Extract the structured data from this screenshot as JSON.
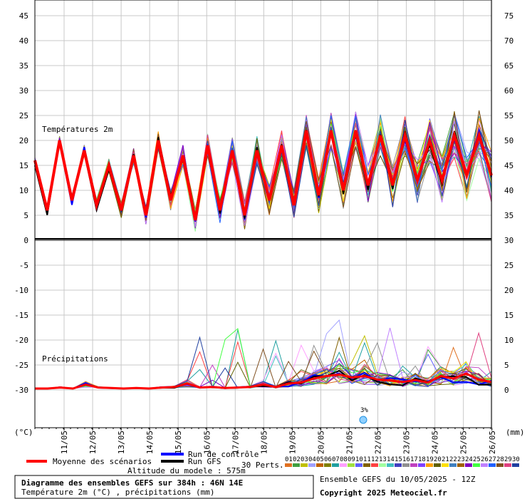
{
  "chart_data": {
    "type": "line",
    "temp_panel": {
      "label": "Températures 2m",
      "left_ticks": [
        "45",
        "40",
        "35",
        "30",
        "25",
        "20",
        "15",
        "10",
        "5"
      ],
      "right_ticks": [
        "75",
        "70",
        "65",
        "60",
        "55",
        "50",
        "45",
        "40",
        "35"
      ]
    },
    "precip_panel": {
      "label": "Précipitations",
      "left_ticks": [
        "0",
        "-5",
        "-10",
        "-15",
        "-20",
        "-25",
        "-30"
      ],
      "right_ticks": [
        "30",
        "25",
        "20",
        "15",
        "10",
        "5",
        "0"
      ]
    },
    "x_ticks": [
      "11/05",
      "12/05",
      "13/05",
      "14/05",
      "15/05",
      "16/05",
      "17/05",
      "18/05",
      "19/05",
      "20/05",
      "21/05",
      "22/05",
      "23/05",
      "24/05",
      "25/05",
      "26/05"
    ],
    "left_unit": "(°C)",
    "right_unit": "(mm)",
    "snow_marker": {
      "label": "3%",
      "date": "22/05"
    },
    "mean_temp": [
      16,
      6,
      20,
      8,
      18,
      7,
      15,
      6,
      17,
      5,
      20,
      8,
      17,
      4,
      19,
      6,
      18,
      5,
      18,
      8,
      19,
      7,
      22,
      9,
      22,
      10,
      22,
      11,
      21,
      11,
      21,
      12,
      20,
      12,
      21,
      13,
      21,
      13
    ],
    "mean_precip": [
      0,
      0,
      0.2,
      0,
      0.8,
      0.2,
      0.1,
      0,
      0.1,
      0,
      0.2,
      0.3,
      1,
      0.2,
      0.3,
      0.1,
      0.2,
      0.3,
      0.8,
      0.3,
      1,
      1.2,
      2,
      2.5,
      2.8,
      2.2,
      2.5,
      1.8,
      1.6,
      1.3,
      1.7,
      1.2,
      2.5,
      2,
      3,
      1.8,
      1.3
    ]
  },
  "legend": {
    "mean": "Moyenne des scénarios",
    "control": "Run de contrôle",
    "gfs": "Run GFS",
    "perts_label": "30 Perts.",
    "pert_numbers": [
      "01",
      "02",
      "03",
      "04",
      "05",
      "06",
      "07",
      "08",
      "09",
      "10",
      "11",
      "12",
      "13",
      "14",
      "15",
      "16",
      "17",
      "18",
      "19",
      "20",
      "21",
      "22",
      "23",
      "24",
      "25",
      "26",
      "27",
      "28",
      "29",
      "30"
    ],
    "pert_colors": [
      "#e07020",
      "#40a040",
      "#c0c000",
      "#a0a0ff",
      "#c06000",
      "#808000",
      "#20a0a0",
      "#ff9fff",
      "#a0e040",
      "#6060ff",
      "#806000",
      "#ff4040",
      "#a0ffa0",
      "#40c0c0",
      "#4040c0",
      "#909090",
      "#c040c0",
      "#8040ff",
      "#ffa000",
      "#606000",
      "#ffe000",
      "#4080c0",
      "#a06000",
      "#8000c0",
      "#40ff40",
      "#c080ff",
      "#2060ff",
      "#805020",
      "#e04080",
      "#2040a0"
    ],
    "altitude": "Altitude du modele : 575m"
  },
  "footer": {
    "title": "Diagramme des ensembles GEFS sur 384h : 46N 14E",
    "subtitle": "Température 2m (°C) , précipitations (mm)",
    "ensemble_date": "Ensemble GEFS du 10/05/2025 - 12Z",
    "copyright": "Copyright 2025 Meteociel.fr"
  },
  "colors": {
    "mean": "#ff0000",
    "control": "#0000ff",
    "gfs": "#000000"
  }
}
